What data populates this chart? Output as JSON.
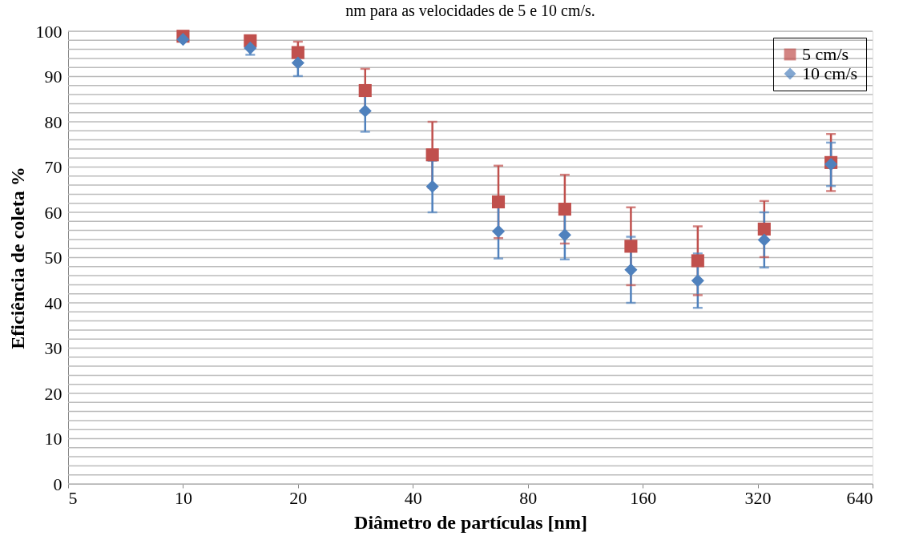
{
  "chart_data": {
    "type": "scatter",
    "title": "nm para as velocidades de 5 e 10 cm/s.",
    "xlabel": "Diâmetro de partículas [nm]",
    "ylabel": "Eficiência de coleta %",
    "log": "x",
    "xlim": [
      5,
      640
    ],
    "xticks": [
      5,
      10,
      20,
      40,
      80,
      160,
      320,
      640
    ],
    "ylim": [
      0,
      100
    ],
    "yticks": [
      0,
      {
        "value": 2,
        "label": null
      },
      {
        "value": 4,
        "label": null
      },
      {
        "value": 6,
        "label": null
      },
      {
        "value": 8,
        "label": null
      },
      10,
      {
        "value": 12,
        "label": null
      },
      {
        "value": 14,
        "label": null
      },
      {
        "value": 16,
        "label": null
      },
      {
        "value": 18,
        "label": null
      },
      20,
      {
        "value": 22,
        "label": null
      },
      {
        "value": 24,
        "label": null
      },
      {
        "value": 26,
        "label": null
      },
      {
        "value": 28,
        "label": null
      },
      30,
      {
        "value": 32,
        "label": null
      },
      {
        "value": 34,
        "label": null
      },
      {
        "value": 36,
        "label": null
      },
      {
        "value": 38,
        "label": null
      },
      40,
      {
        "value": 42,
        "label": null
      },
      {
        "value": 44,
        "label": null
      },
      {
        "value": 46,
        "label": null
      },
      {
        "value": 48,
        "label": null
      },
      50,
      {
        "value": 52,
        "label": null
      },
      {
        "value": 54,
        "label": null
      },
      {
        "value": 56,
        "label": null
      },
      {
        "value": 58,
        "label": null
      },
      60,
      {
        "value": 62,
        "label": null
      },
      {
        "value": 64,
        "label": null
      },
      {
        "value": 66,
        "label": null
      },
      {
        "value": 68,
        "label": null
      },
      70,
      {
        "value": 72,
        "label": null
      },
      {
        "value": 74,
        "label": null
      },
      {
        "value": 76,
        "label": null
      },
      {
        "value": 78,
        "label": null
      },
      80,
      {
        "value": 82,
        "label": null
      },
      {
        "value": 84,
        "label": null
      },
      {
        "value": 86,
        "label": null
      },
      {
        "value": 88,
        "label": null
      },
      90,
      {
        "value": 92,
        "label": null
      },
      {
        "value": 94,
        "label": null
      },
      {
        "value": 96,
        "label": null
      },
      {
        "value": 98,
        "label": null
      },
      100
    ],
    "grid": "y",
    "legend": "top right",
    "x": [
      10,
      15,
      20,
      30,
      45,
      67,
      100,
      149,
      223,
      333,
      498
    ],
    "series": [
      {
        "name": "5 cm/s",
        "color": "#c0504d",
        "marker": "square",
        "values": [
          98.9,
          97.9,
          95.3,
          86.9,
          72.7,
          62.3,
          60.7,
          52.5,
          49.3,
          56.3,
          71.0
        ],
        "errors": [
          null,
          null,
          2.4,
          4.8,
          7.3,
          8.0,
          7.6,
          8.6,
          7.6,
          6.2,
          6.3
        ]
      },
      {
        "name": "10 cm/s",
        "color": "#4f81bd",
        "marker": "diamond",
        "values": [
          98.2,
          96.3,
          93.0,
          82.4,
          65.7,
          55.8,
          55.0,
          47.3,
          44.9,
          53.9,
          70.6
        ],
        "errors": [
          null,
          1.5,
          2.9,
          4.6,
          5.7,
          6.0,
          5.4,
          7.3,
          6.0,
          6.1,
          4.8
        ]
      }
    ]
  }
}
